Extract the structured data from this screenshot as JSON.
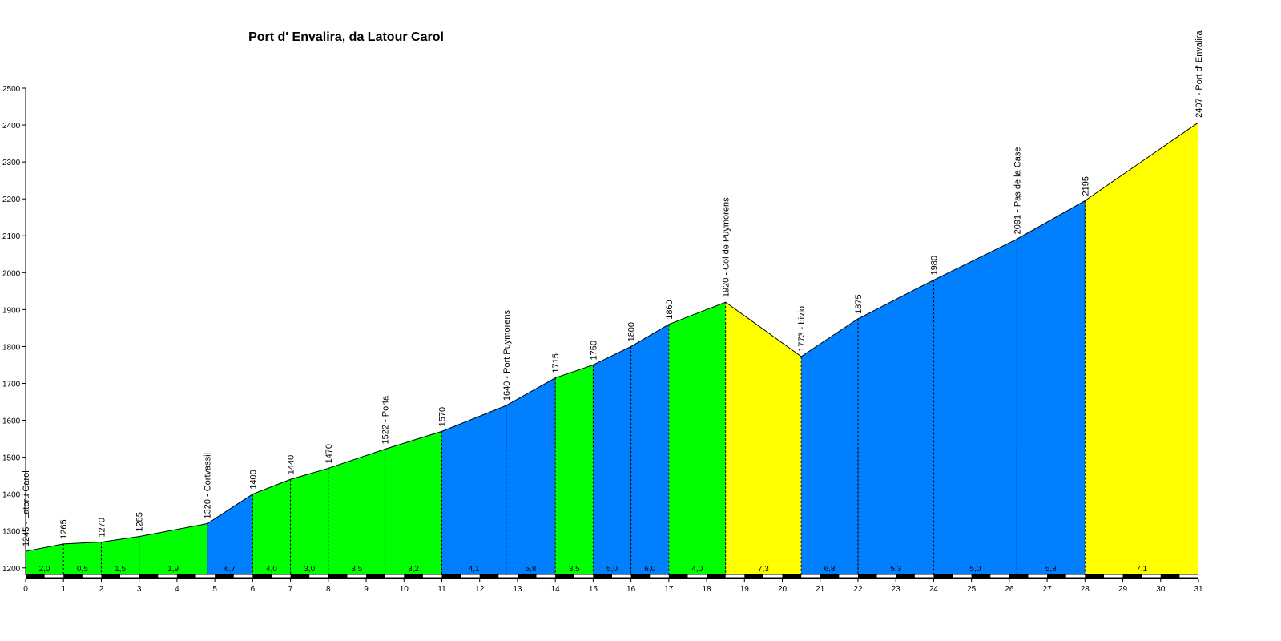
{
  "chart_data": {
    "type": "area",
    "title": "Port d' Envalira, da Latour Carol",
    "xlabel": "",
    "ylabel": "",
    "xlim": [
      0,
      31
    ],
    "ylim": [
      1180,
      2500
    ],
    "y_ticks": [
      1200,
      1300,
      1400,
      1500,
      1600,
      1700,
      1800,
      1900,
      2000,
      2100,
      2200,
      2300,
      2400,
      2500
    ],
    "x_ticks": [
      0,
      1,
      2,
      3,
      4,
      5,
      6,
      7,
      8,
      9,
      10,
      11,
      12,
      13,
      14,
      15,
      16,
      17,
      18,
      19,
      20,
      21,
      22,
      23,
      24,
      25,
      26,
      27,
      28,
      29,
      30,
      31
    ],
    "grid": false,
    "points": [
      {
        "km": 0.0,
        "alt": 1245,
        "label": "1245 - Latoru Carol"
      },
      {
        "km": 1.0,
        "alt": 1265,
        "label": "1265"
      },
      {
        "km": 2.0,
        "alt": 1270,
        "label": "1270"
      },
      {
        "km": 3.0,
        "alt": 1285,
        "label": "1285"
      },
      {
        "km": 4.8,
        "alt": 1320,
        "label": "1320 - Cortvassil"
      },
      {
        "km": 6.0,
        "alt": 1400,
        "label": "1400"
      },
      {
        "km": 7.0,
        "alt": 1440,
        "label": "1440"
      },
      {
        "km": 8.0,
        "alt": 1470,
        "label": "1470"
      },
      {
        "km": 9.5,
        "alt": 1522,
        "label": "1522 - Porta"
      },
      {
        "km": 11.0,
        "alt": 1570,
        "label": "1570"
      },
      {
        "km": 12.7,
        "alt": 1640,
        "label": "1640 - Port Puymorens"
      },
      {
        "km": 14.0,
        "alt": 1715,
        "label": "1715"
      },
      {
        "km": 15.0,
        "alt": 1750,
        "label": "1750"
      },
      {
        "km": 16.0,
        "alt": 1800,
        "label": "1800"
      },
      {
        "km": 17.0,
        "alt": 1860,
        "label": "1860"
      },
      {
        "km": 18.5,
        "alt": 1920,
        "label": "1920 - Col de Puymorens"
      },
      {
        "km": 20.5,
        "alt": 1773,
        "label": "1773 - bivio"
      },
      {
        "km": 22.0,
        "alt": 1875,
        "label": "1875"
      },
      {
        "km": 24.0,
        "alt": 1980,
        "label": "1980"
      },
      {
        "km": 26.2,
        "alt": 2091,
        "label": "2091 - Pas de la Case"
      },
      {
        "km": 28.0,
        "alt": 2195,
        "label": "2195"
      },
      {
        "km": 31.0,
        "alt": 2407,
        "label": "2407 - Port d' Envalira"
      }
    ],
    "segments": [
      {
        "grade": "2,0",
        "color": "#00ff00"
      },
      {
        "grade": "0,5",
        "color": "#00ff00"
      },
      {
        "grade": "1,5",
        "color": "#00ff00"
      },
      {
        "grade": "1,9",
        "color": "#00ff00"
      },
      {
        "grade": "6,7",
        "color": "#0080ff"
      },
      {
        "grade": "4,0",
        "color": "#00ff00"
      },
      {
        "grade": "3,0",
        "color": "#00ff00"
      },
      {
        "grade": "3,5",
        "color": "#00ff00"
      },
      {
        "grade": "3,2",
        "color": "#00ff00"
      },
      {
        "grade": "4,1",
        "color": "#0080ff"
      },
      {
        "grade": "5,8",
        "color": "#0080ff"
      },
      {
        "grade": "3,5",
        "color": "#00ff00"
      },
      {
        "grade": "5,0",
        "color": "#0080ff"
      },
      {
        "grade": "6,0",
        "color": "#0080ff"
      },
      {
        "grade": "4,0",
        "color": "#00ff00"
      },
      {
        "grade": "7,3",
        "color": "#ffff00"
      },
      {
        "grade": "6,8",
        "color": "#0080ff"
      },
      {
        "grade": "5,3",
        "color": "#0080ff"
      },
      {
        "grade": "5,0",
        "color": "#0080ff"
      },
      {
        "grade": "5,8",
        "color": "#0080ff"
      },
      {
        "grade": "7,1",
        "color": "#ffff00"
      }
    ]
  }
}
